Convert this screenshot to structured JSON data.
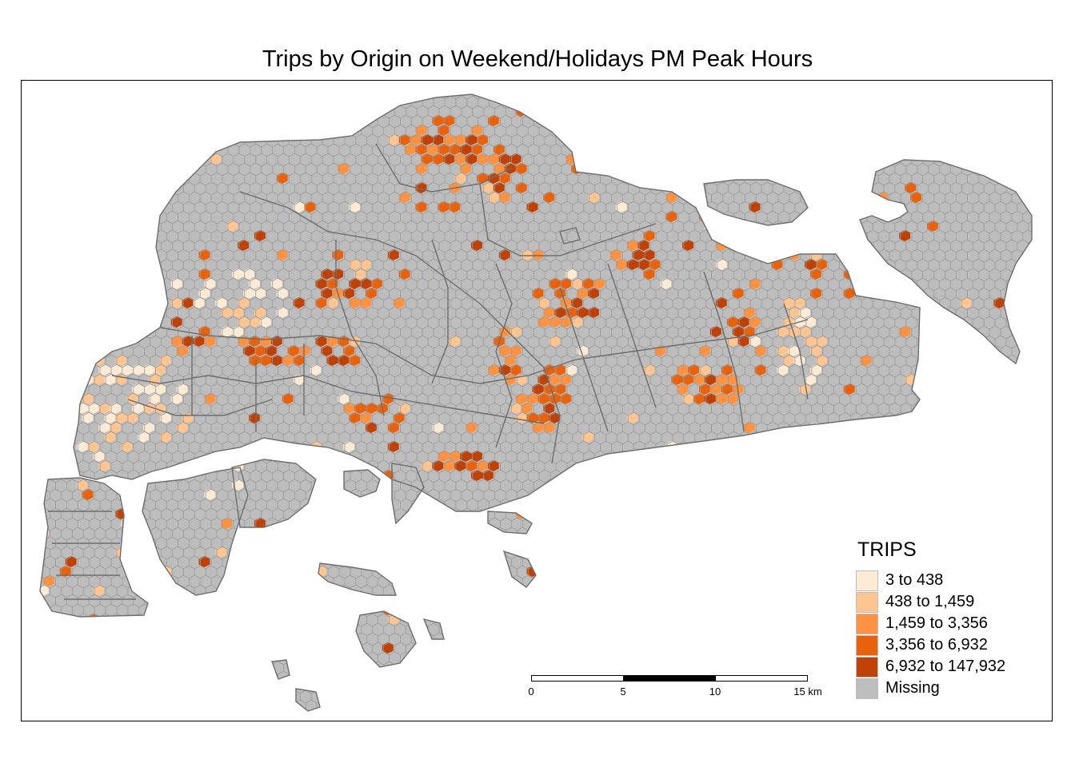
{
  "title": "Trips by Origin on Weekend/Holidays PM Peak Hours",
  "legend": {
    "title": "TRIPS",
    "classes": [
      {
        "label": "3 to 438",
        "color": "#feebd6"
      },
      {
        "label": "438 to 1,459",
        "color": "#fdc592"
      },
      {
        "label": "1,459 to 3,356",
        "color": "#fd9242"
      },
      {
        "label": "3,356 to 6,932",
        "color": "#e8620e"
      },
      {
        "label": "6,932 to 147,932",
        "color": "#be4108"
      },
      {
        "label": "Missing",
        "color": "#bdbdbd"
      }
    ]
  },
  "scale_bar": {
    "ticks": [
      "0",
      "5",
      "10",
      "15"
    ],
    "unit": "km"
  },
  "map_colors": {
    "land_fill": "#bdbdbd",
    "hex_stroke": "#9a9a9a",
    "boundary_stroke": "#6e6e6e"
  }
}
